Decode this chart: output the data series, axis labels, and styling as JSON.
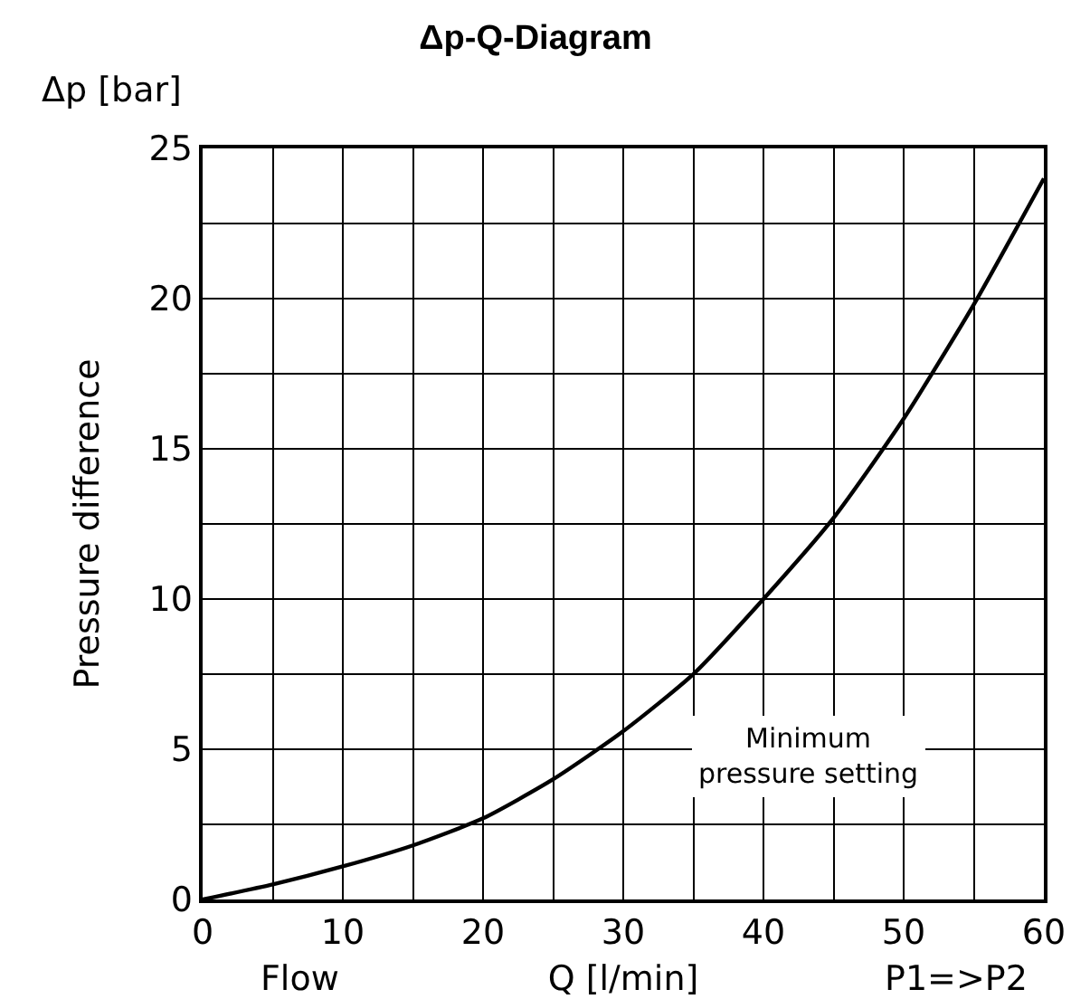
{
  "chart_data": {
    "type": "line",
    "title": "Δp-Q-Diagram",
    "xlabel": "Q [l/min]",
    "ylabel": "Pressure difference",
    "annotations": [
      "Δp [bar]",
      "Minimum\npressure setting",
      "Flow",
      "P1=>P2"
    ],
    "x": [
      0,
      5,
      10,
      15,
      20,
      25,
      30,
      35,
      40,
      45,
      50,
      55,
      60
    ],
    "series": [
      {
        "color": "#000000",
        "values": [
          0,
          0.5,
          1.1,
          1.8,
          2.7,
          4,
          5.6,
          7.5,
          10,
          12.7,
          16,
          19.8,
          24
        ]
      }
    ],
    "xlim": [
      0,
      60
    ],
    "ylim": [
      0,
      25
    ],
    "xticks": [
      0,
      {
        "value": 5,
        "label": null
      },
      10,
      {
        "value": 15,
        "label": null
      },
      20,
      {
        "value": 25,
        "label": null
      },
      30,
      {
        "value": 35,
        "label": null
      },
      40,
      {
        "value": 45,
        "label": null
      },
      50,
      {
        "value": 55,
        "label": null
      },
      60
    ],
    "yticks": [
      0,
      {
        "value": 2.5,
        "label": null
      },
      5,
      {
        "value": 7.5,
        "label": null
      },
      10,
      {
        "value": 12.5,
        "label": null
      },
      15,
      {
        "value": 17.5,
        "label": null
      },
      20,
      {
        "value": 22.5,
        "label": null
      },
      25
    ],
    "grid": true,
    "marker": "none",
    "line_style": "solid"
  }
}
